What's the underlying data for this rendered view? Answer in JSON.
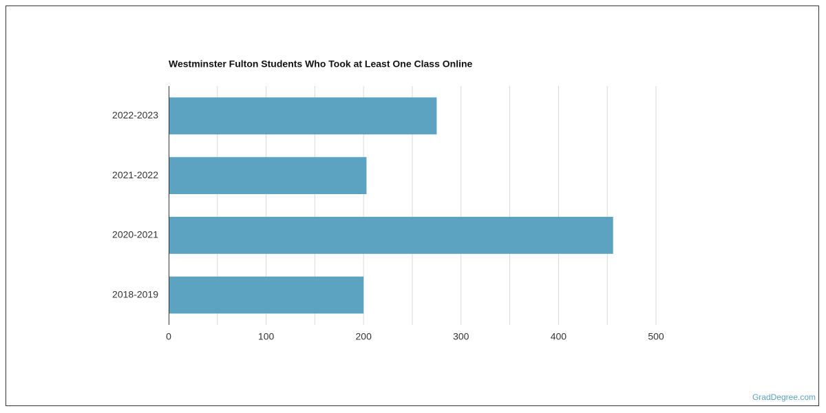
{
  "chart_data": {
    "type": "bar",
    "orientation": "horizontal",
    "title": "Westminster Fulton Students Who Took at Least One Class Online",
    "categories": [
      "2022-2023",
      "2021-2022",
      "2020-2021",
      "2018-2019"
    ],
    "values": [
      275,
      203,
      456,
      200
    ],
    "color": "#5ba3c0",
    "xlim": [
      0,
      500
    ],
    "xticks": [
      0,
      100,
      200,
      300,
      400,
      500
    ],
    "minor_xticks": [
      50,
      150,
      250,
      350,
      450
    ],
    "grid": true,
    "watermark": "GradDegree.com"
  }
}
